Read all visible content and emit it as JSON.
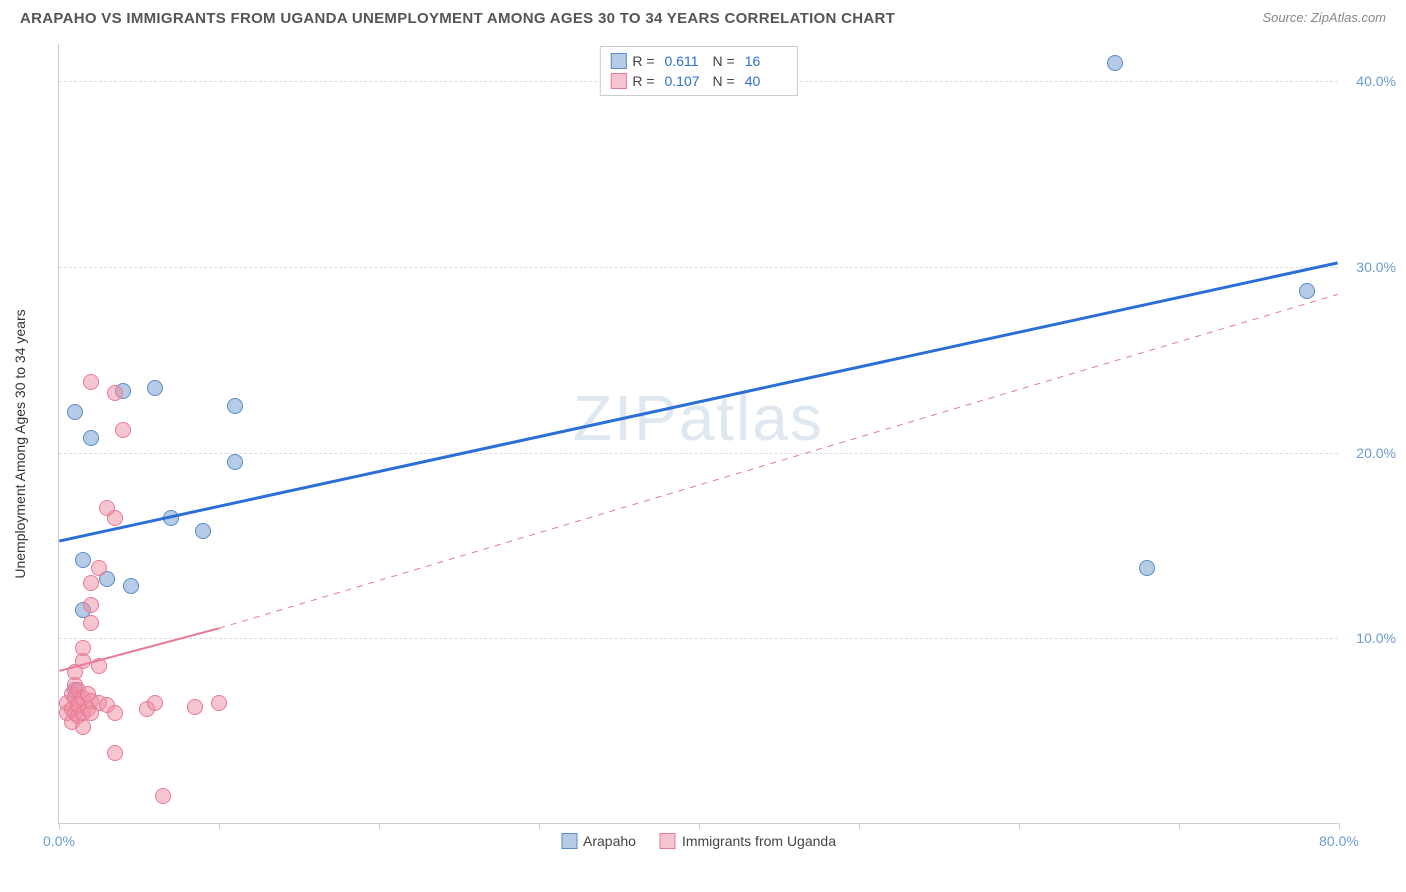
{
  "title": "ARAPAHO VS IMMIGRANTS FROM UGANDA UNEMPLOYMENT AMONG AGES 30 TO 34 YEARS CORRELATION CHART",
  "source": "Source: ZipAtlas.com",
  "ylabel": "Unemployment Among Ages 30 to 34 years",
  "watermark": "ZIPatlas",
  "colors": {
    "blue_fill": "rgba(120,160,210,0.55)",
    "blue_stroke": "#5a8cc9",
    "pink_fill": "rgba(240,140,160,0.5)",
    "pink_stroke": "#e77a95",
    "blue_line": "#2b6fd6",
    "pink_line": "#e77a95",
    "tick_text": "#6b9bd1"
  },
  "chart": {
    "type": "scatter",
    "xlim": [
      0,
      80
    ],
    "ylim": [
      0,
      42
    ],
    "x_ticks": [
      0,
      10,
      20,
      30,
      40,
      50,
      60,
      70,
      80
    ],
    "x_tick_labels": {
      "0": "0.0%",
      "80": "80.0%"
    },
    "y_ticks": [
      10,
      20,
      30,
      40
    ],
    "y_tick_labels": {
      "10": "10.0%",
      "20": "20.0%",
      "30": "30.0%",
      "40": "40.0%"
    },
    "marker_size": 16,
    "series": [
      {
        "name": "Arapaho",
        "color_key": "blue",
        "R": "0.611",
        "N": "16",
        "trend": {
          "x1": 0,
          "y1": 15.2,
          "x2": 80,
          "y2": 30.2,
          "style": "solid",
          "width": 3
        },
        "points": [
          [
            1,
            22.2
          ],
          [
            1.5,
            14.2
          ],
          [
            1.5,
            11.5
          ],
          [
            2,
            20.8
          ],
          [
            3,
            13.2
          ],
          [
            4,
            23.3
          ],
          [
            4.5,
            12.8
          ],
          [
            6,
            23.5
          ],
          [
            7,
            16.5
          ],
          [
            9,
            15.8
          ],
          [
            11,
            22.5
          ],
          [
            11,
            19.5
          ],
          [
            66,
            41.0
          ],
          [
            68,
            13.8
          ],
          [
            78,
            28.7
          ],
          [
            1,
            7.2
          ]
        ]
      },
      {
        "name": "Immigrants from Uganda",
        "color_key": "pink",
        "R": "0.107",
        "N": "40",
        "trend_solid": {
          "x1": 0,
          "y1": 8.2,
          "x2": 10,
          "y2": 10.5,
          "style": "solid",
          "width": 2
        },
        "trend_dash": {
          "x1": 10,
          "y1": 10.5,
          "x2": 80,
          "y2": 28.5,
          "style": "dashed",
          "width": 1
        },
        "points": [
          [
            0.5,
            6.0
          ],
          [
            0.5,
            6.5
          ],
          [
            0.8,
            6.2
          ],
          [
            0.8,
            7.0
          ],
          [
            0.8,
            5.5
          ],
          [
            1,
            6.0
          ],
          [
            1,
            6.8
          ],
          [
            1,
            7.5
          ],
          [
            1,
            8.2
          ],
          [
            1.2,
            5.8
          ],
          [
            1.2,
            6.4
          ],
          [
            1.2,
            7.2
          ],
          [
            1.5,
            5.2
          ],
          [
            1.5,
            6.0
          ],
          [
            1.5,
            6.8
          ],
          [
            1.5,
            8.8
          ],
          [
            1.5,
            9.5
          ],
          [
            1.8,
            6.2
          ],
          [
            1.8,
            7.0
          ],
          [
            2,
            6.0
          ],
          [
            2,
            6.6
          ],
          [
            2,
            10.8
          ],
          [
            2,
            11.8
          ],
          [
            2,
            13.0
          ],
          [
            2,
            23.8
          ],
          [
            2.5,
            6.5
          ],
          [
            2.5,
            8.5
          ],
          [
            2.5,
            13.8
          ],
          [
            3,
            6.4
          ],
          [
            3,
            17.0
          ],
          [
            3.5,
            6.0
          ],
          [
            3.5,
            16.5
          ],
          [
            3.5,
            23.2
          ],
          [
            4,
            21.2
          ],
          [
            5.5,
            6.2
          ],
          [
            6,
            6.5
          ],
          [
            6.5,
            1.5
          ],
          [
            8.5,
            6.3
          ],
          [
            10,
            6.5
          ],
          [
            3.5,
            3.8
          ]
        ]
      }
    ]
  },
  "legend_bottom": {
    "items": [
      "Arapaho",
      "Immigrants from Uganda"
    ]
  }
}
